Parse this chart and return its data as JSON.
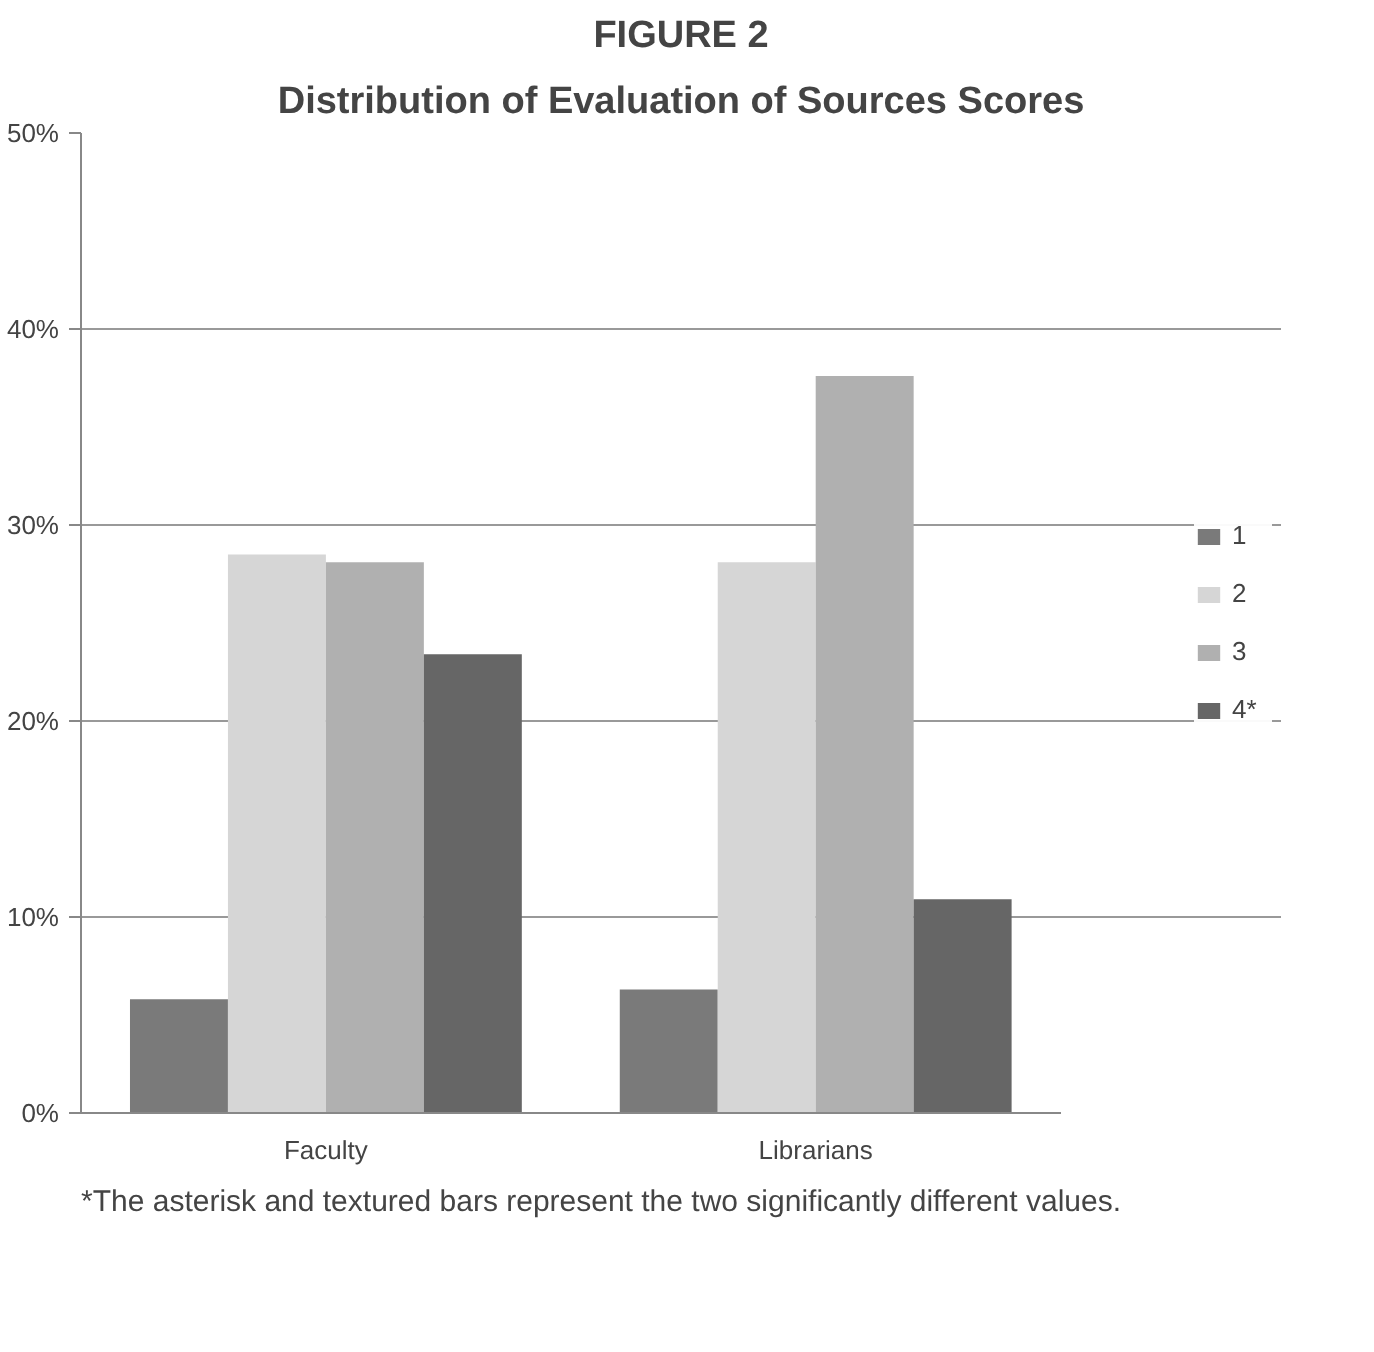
{
  "chart_data": {
    "type": "bar",
    "title": "FIGURE 2",
    "subtitle": "Distribution of Evaluation of Sources Scores",
    "categories": [
      "Faculty",
      "Librarians"
    ],
    "series": [
      {
        "name": "1",
        "color": "#7a7a7a",
        "values": [
          5.8,
          6.3
        ]
      },
      {
        "name": "2",
        "color": "#d6d6d6",
        "values": [
          28.5,
          28.1
        ]
      },
      {
        "name": "3",
        "color": "#b0b0b0",
        "values": [
          28.1,
          37.6
        ]
      },
      {
        "name": "4*",
        "color": "#666666",
        "values": [
          23.4,
          10.9
        ]
      }
    ],
    "ylim": [
      0,
      50
    ],
    "yticks": [
      {
        "value": 0,
        "label": "0%"
      },
      {
        "value": 10,
        "label": "10%"
      },
      {
        "value": 20,
        "label": "20%"
      },
      {
        "value": 30,
        "label": "30%"
      },
      {
        "value": 40,
        "label": "40%"
      },
      {
        "value": 50,
        "label": "50%"
      }
    ],
    "grid": "y",
    "legend": "right",
    "annotations": [
      "*The asterisk and textured bars represent the two significantly different values."
    ]
  }
}
